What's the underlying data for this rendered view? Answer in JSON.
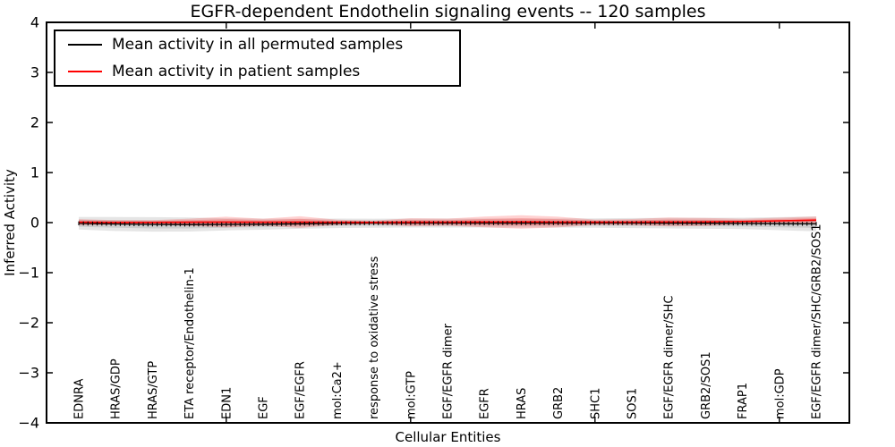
{
  "legend": {
    "entries": [
      {
        "label": "Mean activity in all permuted samples",
        "color": "#000000"
      },
      {
        "label": "Mean activity in patient samples",
        "color": "#ff0000"
      }
    ]
  },
  "chart_data": {
    "type": "line",
    "title": "EGFR-dependent Endothelin signaling events -- 120 samples",
    "xlabel": "Cellular Entities",
    "ylabel": "Inferred Activity",
    "ylim": [
      -4,
      4
    ],
    "yticklabels": [
      "4",
      "3",
      "2",
      "1",
      "0",
      "−1",
      "−2",
      "−3",
      "−4"
    ],
    "grid": false,
    "legend_position": "upper left",
    "categories": [
      "EDNRA",
      "HRAS/GDP",
      "HRAS/GTP",
      "ETA receptor/Endothelin-1",
      "EDN1",
      "EGF",
      "EGF/EGFR",
      "mol:Ca2+",
      "response to oxidative stress",
      "mol:GTP",
      "EGF/EGFR dimer",
      "EGFR",
      "HRAS",
      "GRB2",
      "SHC1",
      "SOS1",
      "EGF/EGFR dimer/SHC",
      "GRB2/SOS1",
      "FRAP1",
      "mol:GDP",
      "EGF/EGFR dimer/SHC/GRB2/SOS1"
    ],
    "xticks_at_category_index": [
      4,
      9,
      14,
      19
    ],
    "series": [
      {
        "name": "Mean activity in all permuted samples",
        "color": "#000000",
        "band_color": "#000000",
        "band_opacity": 0.1,
        "values": [
          -0.014,
          -0.027,
          -0.036,
          -0.039,
          -0.036,
          -0.032,
          -0.023,
          -0.014,
          -0.011,
          -0.009,
          -0.009,
          -0.009,
          -0.009,
          -0.009,
          -0.009,
          -0.009,
          -0.011,
          -0.013,
          -0.016,
          -0.021,
          -0.025
        ],
        "band_halfwidth": [
          0.125,
          0.14,
          0.145,
          0.14,
          0.12,
          0.11,
          0.1,
          0.095,
          0.09,
          0.09,
          0.09,
          0.09,
          0.09,
          0.09,
          0.095,
          0.1,
          0.105,
          0.11,
          0.115,
          0.13,
          0.15
        ]
      },
      {
        "name": "Mean activity in patient samples",
        "color": "#ff0000",
        "band_color": "#ff0000",
        "band_opacity": 0.18,
        "values": [
          0.007,
          0.004,
          0.004,
          0.007,
          0.011,
          0.007,
          0.011,
          0.005,
          0.004,
          0.007,
          0.009,
          0.013,
          0.014,
          0.011,
          0.007,
          0.009,
          0.013,
          0.014,
          0.021,
          0.036,
          0.05
        ],
        "band_halfwidth": [
          0.063,
          0.045,
          0.045,
          0.071,
          0.107,
          0.071,
          0.116,
          0.054,
          0.036,
          0.08,
          0.071,
          0.107,
          0.134,
          0.107,
          0.054,
          0.063,
          0.089,
          0.08,
          0.054,
          0.063,
          0.071
        ]
      }
    ]
  }
}
